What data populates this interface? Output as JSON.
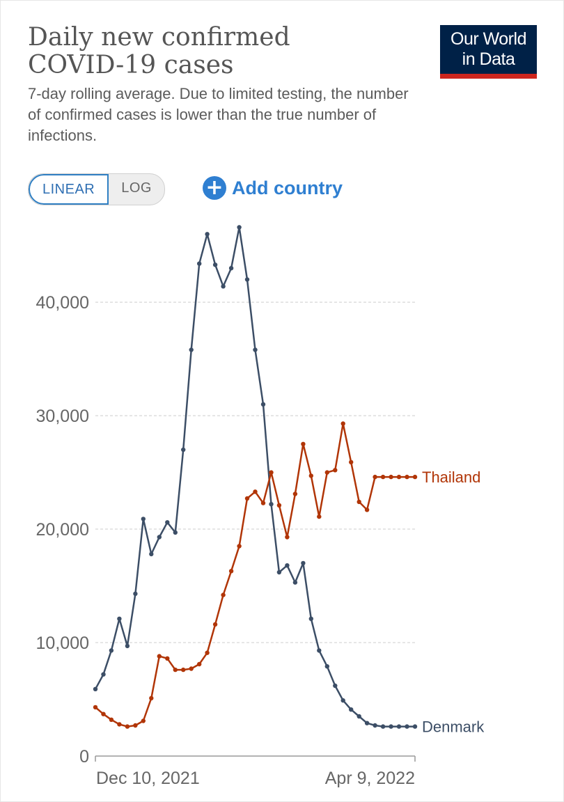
{
  "title": "Daily new confirmed\nCOVID-19 cases",
  "subtitle": "7-day rolling average. Due to limited testing, the number of confirmed cases is lower than the true number of infections.",
  "logo": {
    "line1": "Our World",
    "line2": "in Data"
  },
  "scale_toggle": {
    "linear_label": "LINEAR",
    "log_label": "LOG",
    "selected": "LINEAR"
  },
  "add_country": {
    "icon": "plus-circle-icon",
    "label": "Add country"
  },
  "colors": {
    "accent": "#2f7fd1",
    "brand_navy": "#002147",
    "brand_red": "#ce261e"
  },
  "chart_data": {
    "type": "line",
    "x_start_label": "Dec 10, 2021",
    "x_end_label": "Apr 9, 2022",
    "x_ticks": [
      "Dec 10, 2021",
      "Apr 9, 2022"
    ],
    "y_ticks": [
      "0",
      "10,000",
      "20,000",
      "30,000",
      "40,000"
    ],
    "ylim": [
      0,
      47000
    ],
    "grid": true,
    "series": [
      {
        "name": "Denmark",
        "color": "#3c4e66",
        "dates": [
          "2021-12-10",
          "2021-12-13",
          "2021-12-16",
          "2021-12-19",
          "2021-12-22",
          "2021-12-25",
          "2021-12-28",
          "2021-12-31",
          "2022-01-03",
          "2022-01-06",
          "2022-01-09",
          "2022-01-12",
          "2022-01-15",
          "2022-01-18",
          "2022-01-21",
          "2022-01-24",
          "2022-01-27",
          "2022-01-30",
          "2022-02-02",
          "2022-02-05",
          "2022-02-08",
          "2022-02-11",
          "2022-02-14",
          "2022-02-17",
          "2022-02-20",
          "2022-02-23",
          "2022-02-26",
          "2022-03-01",
          "2022-03-04",
          "2022-03-07",
          "2022-03-10",
          "2022-03-13",
          "2022-03-16",
          "2022-03-19",
          "2022-03-22",
          "2022-03-25",
          "2022-03-28",
          "2022-03-31",
          "2022-04-03",
          "2022-04-06",
          "2022-04-09"
        ],
        "values": [
          5900,
          7200,
          9300,
          12100,
          9700,
          14300,
          20900,
          17800,
          19300,
          20600,
          19700,
          27000,
          35800,
          43400,
          46000,
          43300,
          41400,
          43000,
          46600,
          42000,
          35800,
          31000,
          22200,
          16200,
          16800,
          15300,
          17000,
          12100,
          9300,
          7900,
          6200,
          4900,
          4100,
          3500,
          2900,
          2700,
          2600,
          2600,
          2600,
          2600,
          2600
        ]
      },
      {
        "name": "Thailand",
        "color": "#b13507",
        "dates": [
          "2021-12-10",
          "2021-12-13",
          "2021-12-16",
          "2021-12-19",
          "2021-12-22",
          "2021-12-25",
          "2021-12-28",
          "2021-12-31",
          "2022-01-03",
          "2022-01-06",
          "2022-01-09",
          "2022-01-12",
          "2022-01-15",
          "2022-01-18",
          "2022-01-21",
          "2022-01-24",
          "2022-01-27",
          "2022-01-30",
          "2022-02-02",
          "2022-02-05",
          "2022-02-08",
          "2022-02-11",
          "2022-02-14",
          "2022-02-17",
          "2022-02-20",
          "2022-02-23",
          "2022-02-26",
          "2022-03-01",
          "2022-03-04",
          "2022-03-07",
          "2022-03-10",
          "2022-03-13",
          "2022-03-16",
          "2022-03-19",
          "2022-03-22",
          "2022-03-25",
          "2022-03-28",
          "2022-03-31",
          "2022-04-03",
          "2022-04-06",
          "2022-04-09"
        ],
        "values": [
          4300,
          3700,
          3200,
          2800,
          2600,
          2700,
          3100,
          5100,
          8800,
          8600,
          7600,
          7600,
          7700,
          8100,
          9100,
          11600,
          14200,
          16300,
          18500,
          22700,
          23300,
          22300,
          25000,
          22100,
          19300,
          23100,
          27500,
          24700,
          21100,
          25000,
          25200,
          29300,
          25900,
          22400,
          21700,
          24600,
          24600,
          24600,
          24600,
          24600,
          24600
        ]
      }
    ]
  }
}
